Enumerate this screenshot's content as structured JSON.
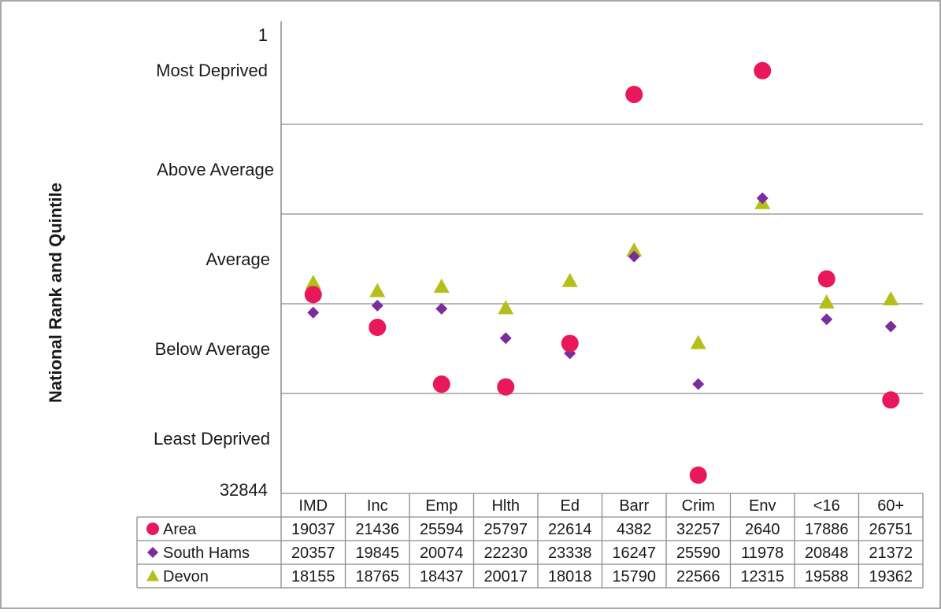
{
  "chart_data": {
    "type": "scatter",
    "ylabel": "National Rank and Quintile",
    "y_top_label": "1",
    "y_bottom_label": "32844",
    "ylim": [
      1,
      32844
    ],
    "y_inverted": true,
    "quintile_labels": [
      "Most Deprived",
      "Above Average",
      "Average",
      "Below Average",
      "Least Deprived"
    ],
    "grid": "horizontal quintile lines",
    "categories": [
      "IMD",
      "Inc",
      "Emp",
      "Hlth",
      "Ed",
      "Barr",
      "Crim",
      "Env",
      "<16",
      "60+"
    ],
    "series": [
      {
        "name": "Area",
        "marker": "circle",
        "color": "#e8185a",
        "values": [
          19037,
          21436,
          25594,
          25797,
          22614,
          4382,
          32257,
          2640,
          17886,
          26751
        ]
      },
      {
        "name": "South Hams",
        "marker": "diamond",
        "color": "#7b2d9e",
        "values": [
          20357,
          19845,
          20074,
          22230,
          23338,
          16247,
          25590,
          11978,
          20848,
          21372
        ]
      },
      {
        "name": "Devon",
        "marker": "triangle",
        "color": "#b5be1a",
        "values": [
          18155,
          18765,
          18437,
          20017,
          18018,
          15790,
          22566,
          12315,
          19588,
          19362
        ]
      }
    ]
  }
}
